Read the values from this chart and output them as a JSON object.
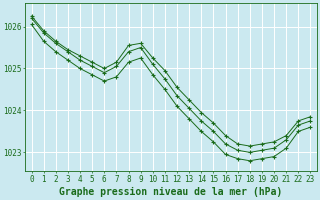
{
  "background_color": "#cbe9f0",
  "grid_color": "#ffffff",
  "line_color": "#1a6b1a",
  "marker_color": "#1a6b1a",
  "xlabel": "Graphe pression niveau de la mer (hPa)",
  "xlabel_fontsize": 7,
  "tick_fontsize": 5.5,
  "ytick_labels": [
    1023,
    1024,
    1025,
    1026
  ],
  "ylim": [
    1022.55,
    1026.55
  ],
  "xlim": [
    -0.5,
    23.5
  ],
  "xtick_labels": [
    0,
    1,
    2,
    3,
    4,
    5,
    6,
    7,
    8,
    9,
    10,
    11,
    12,
    13,
    14,
    15,
    16,
    17,
    18,
    19,
    20,
    21,
    22,
    23
  ],
  "series": [
    [
      1026.25,
      1025.9,
      1025.65,
      1025.45,
      1025.3,
      1025.15,
      1025.0,
      1025.15,
      1025.55,
      1025.6,
      1025.25,
      1024.95,
      1024.55,
      1024.25,
      1023.95,
      1023.7,
      1023.4,
      1023.2,
      1023.15,
      1023.2,
      1023.25,
      1023.4,
      1023.75,
      1023.85
    ],
    [
      1026.2,
      1025.85,
      1025.6,
      1025.4,
      1025.2,
      1025.05,
      1024.9,
      1025.05,
      1025.4,
      1025.5,
      1025.1,
      1024.75,
      1024.35,
      1024.05,
      1023.75,
      1023.5,
      1023.2,
      1023.05,
      1023.0,
      1023.05,
      1023.1,
      1023.3,
      1023.65,
      1023.75
    ],
    [
      1026.05,
      1025.65,
      1025.4,
      1025.2,
      1025.0,
      1024.85,
      1024.7,
      1024.8,
      1025.15,
      1025.25,
      1024.85,
      1024.5,
      1024.1,
      1023.8,
      1023.5,
      1023.25,
      1022.95,
      1022.85,
      1022.8,
      1022.85,
      1022.9,
      1023.1,
      1023.5,
      1023.6
    ]
  ]
}
